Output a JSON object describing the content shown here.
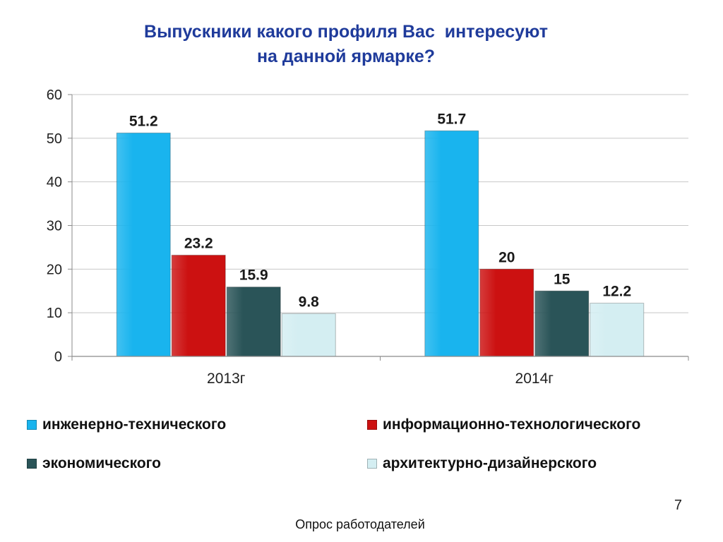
{
  "slide": {
    "title_line1": "Выпускники какого профиля Вас  интересуют",
    "title_line2": "на данной ярмарке?",
    "page_number": "7",
    "footer": "Опрос работодателей"
  },
  "chart_data": {
    "type": "bar",
    "categories": [
      "2013г",
      "2014г"
    ],
    "series": [
      {
        "name": "инженерно-технического",
        "values": [
          51.2,
          51.7
        ],
        "color": "#19b4ee",
        "label_color": "#1a1a1a"
      },
      {
        "name": "информационно-технологического",
        "values": [
          23.2,
          20
        ],
        "color": "#cc1111",
        "label_color": "#1a1a1a"
      },
      {
        "name": "экономического",
        "values": [
          15.9,
          15
        ],
        "color": "#2a5458",
        "label_color": "#1a1a1a"
      },
      {
        "name": "архитектурно-дизайнерского",
        "values": [
          9.8,
          12.2
        ],
        "color": "#d4eef2",
        "label_color": "#1a1a1a"
      }
    ],
    "data_labels": [
      [
        "51.2",
        "51.7"
      ],
      [
        "23.2",
        "20"
      ],
      [
        "15.9",
        "15"
      ],
      [
        "9.8",
        "12.2"
      ]
    ],
    "ylim": [
      0,
      60
    ],
    "yticks": [
      0,
      10,
      20,
      30,
      40,
      50,
      60
    ],
    "ytick_labels": [
      "0",
      "10",
      "20",
      "30",
      "40",
      "50",
      "60"
    ],
    "grid": true,
    "legend_position": "bottom"
  }
}
